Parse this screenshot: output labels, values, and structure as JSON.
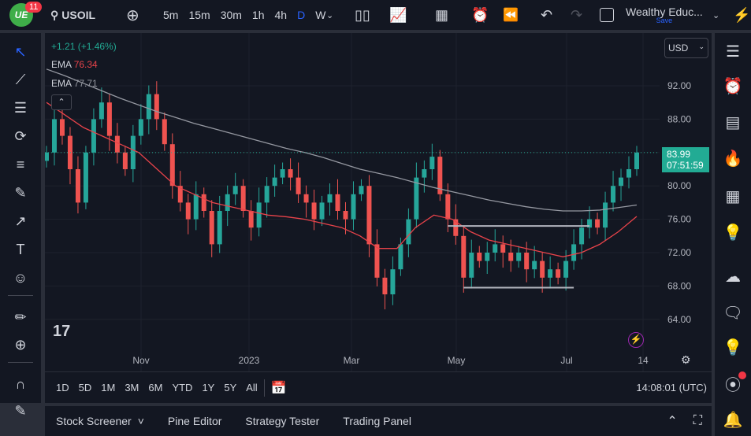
{
  "topbar": {
    "badge": "11",
    "symbol": "USOIL",
    "intervals": [
      "5m",
      "15m",
      "30m",
      "1h",
      "4h",
      "D",
      "W"
    ],
    "active_interval": "D",
    "layout_name": "Wealthy Educ...",
    "save_label": "Save"
  },
  "legend": {
    "change": "+1.21 (+1.46%)",
    "ema1_label": "EMA",
    "ema1_value": "76.34",
    "ema2_label": "EMA",
    "ema2_value": "77.71"
  },
  "currency": "USD",
  "price_label": {
    "price": "83.99",
    "countdown": "07:51:59"
  },
  "ranges": [
    "1D",
    "5D",
    "1M",
    "3M",
    "6M",
    "YTD",
    "1Y",
    "5Y",
    "All"
  ],
  "clock": "14:08:01 (UTC)",
  "bottom_tabs": [
    "Stock Screener",
    "Pine Editor",
    "Strategy Tester",
    "Trading Panel"
  ],
  "colors": {
    "up": "#26a69a",
    "down": "#ef5350",
    "ema_fast": "#e8434a",
    "ema_slow": "#9598a1",
    "accent": "#2962ff",
    "price_tag": "#22ab94"
  },
  "chart_data": {
    "type": "candlestick",
    "ylim": [
      61,
      98
    ],
    "y_ticks": [
      "92.00",
      "88.00",
      "80.00",
      "76.00",
      "72.00",
      "68.00",
      "64.00"
    ],
    "x_ticks": [
      "Nov",
      "2023",
      "Mar",
      "May",
      "Jul",
      "14"
    ],
    "closes": [
      84,
      88,
      86,
      82,
      78,
      84,
      88,
      90,
      86,
      84,
      82,
      86,
      88,
      91,
      88,
      85,
      80,
      78,
      76,
      79,
      77,
      73,
      77,
      79,
      80,
      77,
      75,
      78,
      80,
      81,
      82,
      81,
      79,
      78,
      76,
      78,
      79,
      77,
      76,
      79,
      80,
      73,
      69,
      67,
      70,
      73,
      76,
      81,
      82,
      83.5,
      79,
      76,
      74,
      69,
      72,
      71,
      72,
      73,
      72,
      71,
      72,
      70,
      71,
      69,
      70,
      69,
      71,
      73,
      75,
      76,
      75,
      78,
      80,
      81,
      82,
      83.99
    ],
    "ema_fast": [
      90,
      88.5,
      87,
      86,
      85,
      84,
      82,
      80,
      79,
      78,
      77.5,
      77,
      76.5,
      76.3,
      76,
      75.5,
      75,
      74,
      72.5,
      72.5,
      75,
      76.5,
      76,
      74.5,
      73.5,
      73,
      72.5,
      72,
      71.5,
      72,
      73,
      74.5,
      76.34
    ],
    "ema_slow": [
      94,
      93.2,
      92.3,
      91.4,
      90.5,
      89.7,
      88.9,
      88.2,
      87.5,
      86.9,
      86.3,
      85.7,
      85.1,
      84.5,
      84,
      83.4,
      82.7,
      82,
      81.5,
      81,
      80.4,
      79.8,
      79.3,
      78.8,
      78.3,
      77.9,
      77.5,
      77.2,
      77,
      77,
      77.1,
      77.4,
      77.71
    ],
    "levels": [
      {
        "price": 75.2,
        "from_bar": 51,
        "to_bar": 69
      },
      {
        "price": 67.8,
        "from_bar": 53,
        "to_bar": 67
      }
    ],
    "last_price": 83.99
  }
}
